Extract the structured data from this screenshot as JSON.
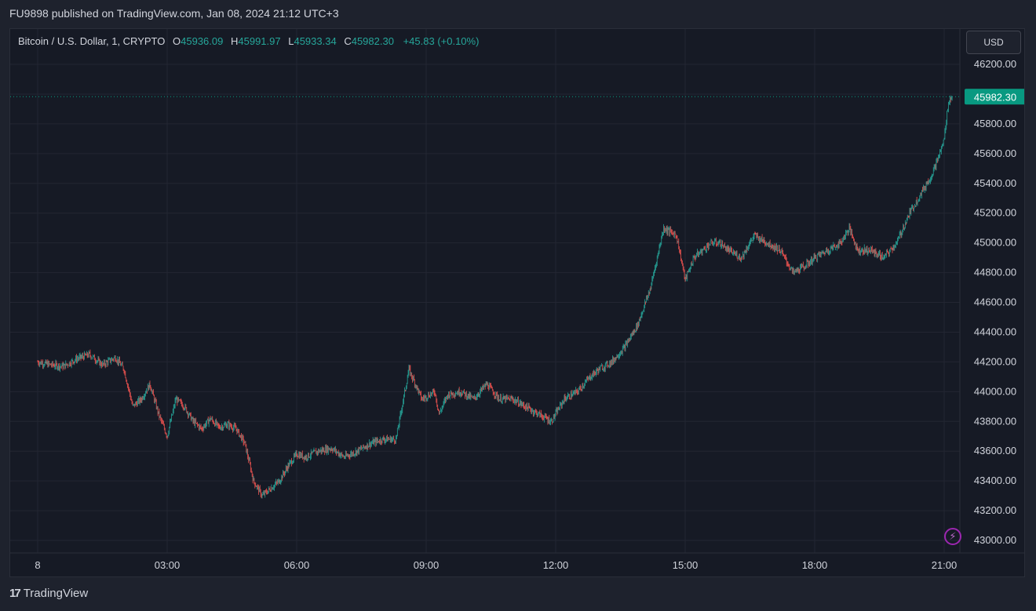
{
  "header": {
    "published_text": "FU9898 published on TradingView.com, Jan 08, 2024 21:12 UTC+3"
  },
  "legend": {
    "symbol": "Bitcoin / U.S. Dollar, 1, CRYPTO",
    "o_label": "O",
    "o_value": "45936.09",
    "h_label": "H",
    "h_value": "45991.97",
    "l_label": "L",
    "l_value": "45933.34",
    "c_label": "C",
    "c_value": "45982.30",
    "change": "+45.83 (+0.10%)"
  },
  "currency_button": "USD",
  "last_price_label": "45982.30",
  "footer": {
    "brand": "TradingView",
    "logo_icon": "tradingview-logo-icon"
  },
  "colors": {
    "up": "#26a69a",
    "down": "#ef5350",
    "accent": "#089981",
    "bolt": "#9c27b0"
  },
  "chart_data": {
    "type": "line",
    "subtype": "candlestick",
    "title": "Bitcoin / U.S. Dollar, 1, CRYPTO",
    "xlabel": "",
    "ylabel": "",
    "x_ticks": [
      "8",
      "03:00",
      "06:00",
      "09:00",
      "12:00",
      "15:00",
      "18:00",
      "21:00"
    ],
    "y_ticks": [
      "46200.00",
      "46000.00",
      "45800.00",
      "45600.00",
      "45400.00",
      "45200.00",
      "45000.00",
      "44800.00",
      "44600.00",
      "44400.00",
      "44200.00",
      "44000.00",
      "43800.00",
      "43600.00",
      "43400.00",
      "43200.00",
      "43000.00"
    ],
    "ylim": [
      43000,
      46200
    ],
    "xlim_hours": [
      0,
      21.2
    ],
    "grid": true,
    "last_price": 45982.3,
    "series": [
      {
        "name": "Close",
        "x": [
          0.0,
          0.3,
          0.6,
          0.9,
          1.2,
          1.5,
          1.8,
          2.0,
          2.2,
          2.4,
          2.6,
          2.8,
          3.0,
          3.2,
          3.4,
          3.6,
          3.8,
          4.0,
          4.2,
          4.4,
          4.6,
          4.8,
          5.0,
          5.2,
          5.4,
          5.6,
          5.8,
          6.0,
          6.2,
          6.5,
          6.8,
          7.1,
          7.4,
          7.7,
          8.0,
          8.3,
          8.6,
          8.9,
          9.2,
          9.3,
          9.5,
          9.8,
          10.1,
          10.4,
          10.7,
          11.0,
          11.3,
          11.6,
          11.9,
          12.2,
          12.5,
          12.8,
          13.0,
          13.3,
          13.6,
          13.9,
          14.2,
          14.5,
          14.8,
          15.0,
          15.2,
          15.4,
          15.6,
          15.8,
          16.0,
          16.3,
          16.6,
          16.9,
          17.2,
          17.5,
          17.8,
          18.0,
          18.3,
          18.6,
          18.8,
          19.0,
          19.3,
          19.6,
          19.9,
          20.2,
          20.5,
          20.7,
          20.9,
          21.0,
          21.1,
          21.2
        ],
        "y": [
          44200,
          44180,
          44170,
          44220,
          44250,
          44180,
          44230,
          44150,
          43900,
          43950,
          44050,
          43850,
          43700,
          43950,
          43900,
          43800,
          43750,
          43820,
          43760,
          43780,
          43750,
          43650,
          43400,
          43300,
          43350,
          43400,
          43500,
          43580,
          43560,
          43600,
          43620,
          43560,
          43600,
          43650,
          43680,
          43680,
          44150,
          43950,
          44000,
          43850,
          43980,
          44000,
          43950,
          44050,
          43950,
          43950,
          43900,
          43850,
          43800,
          43950,
          44000,
          44100,
          44150,
          44200,
          44300,
          44450,
          44700,
          45100,
          45050,
          44750,
          44900,
          44950,
          45000,
          45000,
          44950,
          44900,
          45050,
          45000,
          44950,
          44800,
          44850,
          44900,
          44950,
          45000,
          45100,
          44950,
          44950,
          44900,
          45000,
          45200,
          45350,
          45450,
          45600,
          45700,
          45950,
          45982.3
        ]
      }
    ]
  }
}
